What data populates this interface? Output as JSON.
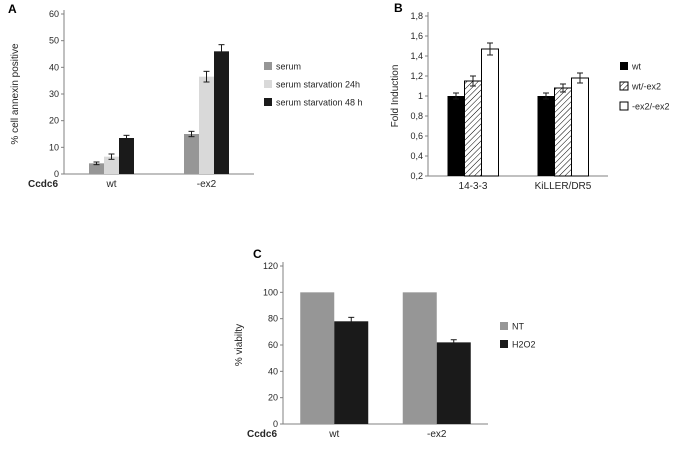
{
  "figure_title": "",
  "chart_data": [
    {
      "type": "bar",
      "panel": "A",
      "ylabel": "% cell annexin positive",
      "xlabel": "Ccdc6",
      "categories": [
        "wt",
        "-ex2"
      ],
      "ylim": [
        0,
        60
      ],
      "yticks": [
        0,
        10,
        20,
        30,
        40,
        50,
        60
      ],
      "yticklabels": [
        "0",
        "10",
        "20",
        "30",
        "40",
        "50",
        "60"
      ],
      "grid": false,
      "legend_position": "right",
      "series": [
        {
          "name": "serum",
          "fill": "#969696",
          "values": [
            4,
            15
          ],
          "errors": [
            0.5,
            1
          ]
        },
        {
          "name": "serum starvation 24h",
          "fill": "#d9d9d9",
          "values": [
            6.5,
            36.5
          ],
          "errors": [
            1,
            2
          ]
        },
        {
          "name": "serum starvation 48 h",
          "fill": "#1a1a1a",
          "values": [
            13.5,
            46
          ],
          "errors": [
            1,
            2.5
          ]
        }
      ]
    },
    {
      "type": "bar",
      "panel": "B",
      "ylabel": "Fold Induction",
      "xlabel": "",
      "categories": [
        "14-3-3",
        "KiLLER/DR5"
      ],
      "ylim": [
        0.2,
        1.8
      ],
      "yticks": [
        0.2,
        0.4,
        0.6,
        0.8,
        1,
        1.2,
        1.4,
        1.6,
        1.8
      ],
      "yticklabels": [
        "0,2",
        "0,4",
        "0,6",
        "0,8",
        "1",
        "1,2",
        "1,4",
        "1,6",
        "1,8"
      ],
      "grid": false,
      "legend_position": "right",
      "series": [
        {
          "name": "wt",
          "fill": "#000000",
          "values": [
            1.0,
            1.0
          ],
          "errors": [
            0.03,
            0.03
          ]
        },
        {
          "name": "wt/-ex2",
          "fill": "hatch",
          "stroke": "#000000",
          "values": [
            1.15,
            1.08
          ],
          "errors": [
            0.05,
            0.04
          ]
        },
        {
          "name": "-ex2/-ex2",
          "fill": "#ffffff",
          "stroke": "#000000",
          "values": [
            1.47,
            1.18
          ],
          "errors": [
            0.06,
            0.05
          ]
        }
      ]
    },
    {
      "type": "bar",
      "panel": "C",
      "ylabel": "% viabilty",
      "xlabel": "Ccdc6",
      "categories": [
        "wt",
        "-ex2"
      ],
      "ylim": [
        0,
        120
      ],
      "yticks": [
        0,
        20,
        40,
        60,
        80,
        100,
        120
      ],
      "yticklabels": [
        "0",
        "20",
        "40",
        "60",
        "80",
        "100",
        "120"
      ],
      "grid": false,
      "legend_position": "right",
      "series": [
        {
          "name": "NT",
          "fill": "#969696",
          "values": [
            100,
            100
          ],
          "errors": [
            0,
            0
          ]
        },
        {
          "name": "H2O2",
          "fill": "#1a1a1a",
          "values": [
            78,
            62
          ],
          "errors": [
            3,
            2
          ]
        }
      ]
    }
  ],
  "colors": {
    "axis": "#808080",
    "text": "#262626",
    "error_bar": "#1a1a1a",
    "background": "#ffffff"
  }
}
